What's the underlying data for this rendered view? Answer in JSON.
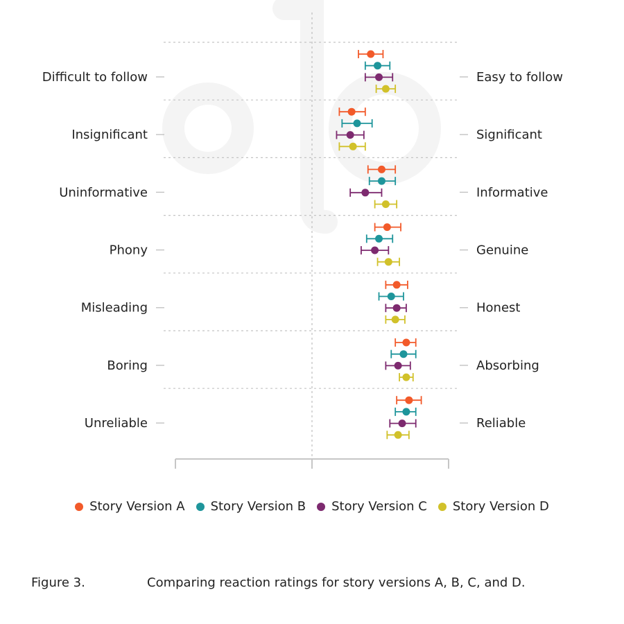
{
  "chart_data": {
    "type": "dot-interval",
    "scales": [
      {
        "low": "Difficult to follow",
        "high": "Easy to follow"
      },
      {
        "low": "Insignificant",
        "high": "Significant"
      },
      {
        "low": "Uninformative",
        "high": "Informative"
      },
      {
        "low": "Phony",
        "high": "Genuine"
      },
      {
        "low": "Misleading",
        "high": "Honest"
      },
      {
        "low": "Boring",
        "high": "Absorbing"
      },
      {
        "low": "Unreliable",
        "high": "Reliable"
      }
    ],
    "xlim": [
      -1,
      1
    ],
    "series": [
      {
        "name": "Story Version A",
        "color": "#f25a2a",
        "values": [
          0.43,
          0.29,
          0.51,
          0.55,
          0.62,
          0.69,
          0.71
        ],
        "lower": [
          0.34,
          0.2,
          0.41,
          0.46,
          0.54,
          0.61,
          0.62
        ],
        "upper": [
          0.52,
          0.39,
          0.61,
          0.65,
          0.7,
          0.76,
          0.8
        ]
      },
      {
        "name": "Story Version B",
        "color": "#1e959b",
        "values": [
          0.48,
          0.33,
          0.51,
          0.49,
          0.58,
          0.67,
          0.69
        ],
        "lower": [
          0.39,
          0.22,
          0.42,
          0.4,
          0.49,
          0.58,
          0.61
        ],
        "upper": [
          0.57,
          0.44,
          0.61,
          0.59,
          0.67,
          0.76,
          0.76
        ]
      },
      {
        "name": "Story Version C",
        "color": "#7d2a6f",
        "values": [
          0.49,
          0.28,
          0.39,
          0.46,
          0.62,
          0.63,
          0.66
        ],
        "lower": [
          0.39,
          0.18,
          0.28,
          0.36,
          0.54,
          0.54,
          0.57
        ],
        "upper": [
          0.59,
          0.38,
          0.51,
          0.56,
          0.69,
          0.72,
          0.76
        ]
      },
      {
        "name": "Story Version D",
        "color": "#d1c12a",
        "values": [
          0.54,
          0.3,
          0.54,
          0.56,
          0.61,
          0.69,
          0.63
        ],
        "lower": [
          0.47,
          0.2,
          0.46,
          0.48,
          0.54,
          0.64,
          0.55
        ],
        "upper": [
          0.61,
          0.39,
          0.62,
          0.64,
          0.68,
          0.74,
          0.71
        ]
      }
    ]
  },
  "caption": {
    "label": "Figure 3.",
    "text": "Comparing reaction ratings for story versions A, B, C, and D."
  }
}
